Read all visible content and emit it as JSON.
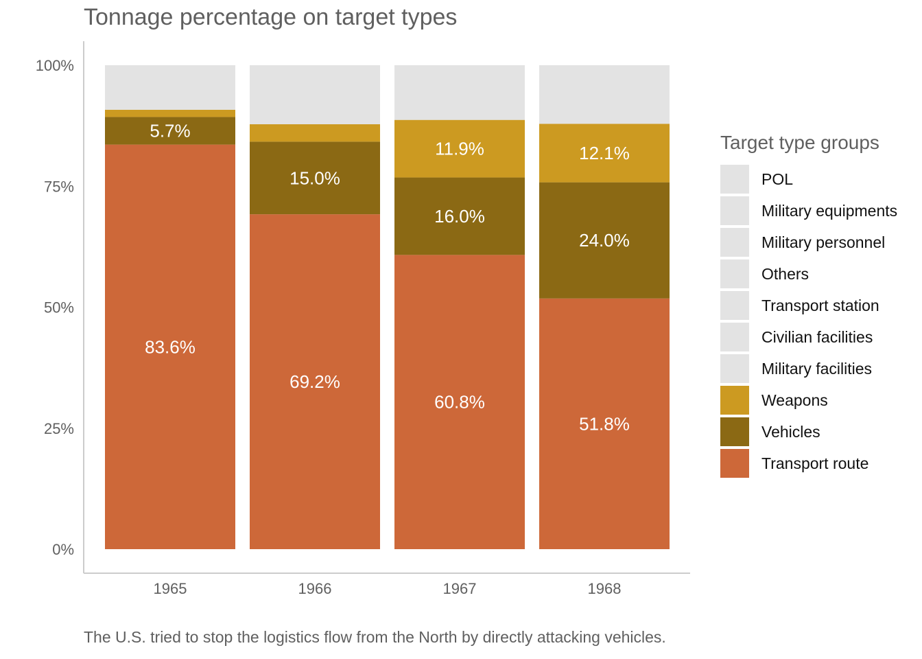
{
  "chart_data": {
    "type": "bar",
    "stacked": true,
    "title": "Tonnage percentage on target types",
    "caption": "The U.S. tried to stop the logistics flow from the North by directly attacking vehicles.",
    "categories": [
      "1965",
      "1966",
      "1967",
      "1968"
    ],
    "y_ticks": [
      "0%",
      "25%",
      "50%",
      "75%",
      "100%"
    ],
    "ylim": [
      0,
      100
    ],
    "legend": {
      "title": "Target type groups",
      "position": "right",
      "entries": [
        {
          "label": "POL",
          "color": "#e3e3e3"
        },
        {
          "label": "Military equipments",
          "color": "#e3e3e3"
        },
        {
          "label": "Military personnel",
          "color": "#e3e3e3"
        },
        {
          "label": "Others",
          "color": "#e3e3e3"
        },
        {
          "label": "Transport station",
          "color": "#e3e3e3"
        },
        {
          "label": "Civilian facilities",
          "color": "#e3e3e3"
        },
        {
          "label": "Military facilities",
          "color": "#e3e3e3"
        },
        {
          "label": "Weapons",
          "color": "#cc9a21"
        },
        {
          "label": "Vehicles",
          "color": "#8b6914"
        },
        {
          "label": "Transport route",
          "color": "#cd6839"
        }
      ]
    },
    "series": [
      {
        "name": "Transport route",
        "color": "#cd6839",
        "values": [
          83.6,
          69.2,
          60.8,
          51.8
        ],
        "labels": [
          "83.6%",
          "69.2%",
          "60.8%",
          "51.8%"
        ]
      },
      {
        "name": "Vehicles",
        "color": "#8b6914",
        "values": [
          5.7,
          15.0,
          16.0,
          24.0
        ],
        "labels": [
          "5.7%",
          "15.0%",
          "16.0%",
          "24.0%"
        ]
      },
      {
        "name": "Weapons",
        "color": "#cc9a21",
        "values": [
          1.5,
          3.6,
          11.9,
          12.1
        ],
        "labels": [
          "",
          "",
          "11.9%",
          "12.1%"
        ]
      },
      {
        "name": "POL",
        "color": "#e3e3e3",
        "values": [
          0,
          0,
          0,
          0
        ]
      },
      {
        "name": "Military equipments",
        "color": "#e3e3e3",
        "values": [
          0,
          0,
          0,
          0
        ]
      },
      {
        "name": "Military personnel",
        "color": "#e3e3e3",
        "values": [
          0,
          0,
          0,
          0
        ]
      },
      {
        "name": "Others",
        "color": "#e3e3e3",
        "values": [
          0,
          0,
          0,
          0
        ]
      },
      {
        "name": "Transport station",
        "color": "#e3e3e3",
        "values": [
          0,
          0,
          0,
          0
        ]
      },
      {
        "name": "Civilian facilities",
        "color": "#e3e3e3",
        "values": [
          0,
          0,
          0,
          0
        ]
      },
      {
        "name": "Military facilities",
        "color": "#e3e3e3",
        "values": [
          9.2,
          12.2,
          11.3,
          12.1
        ]
      }
    ]
  }
}
